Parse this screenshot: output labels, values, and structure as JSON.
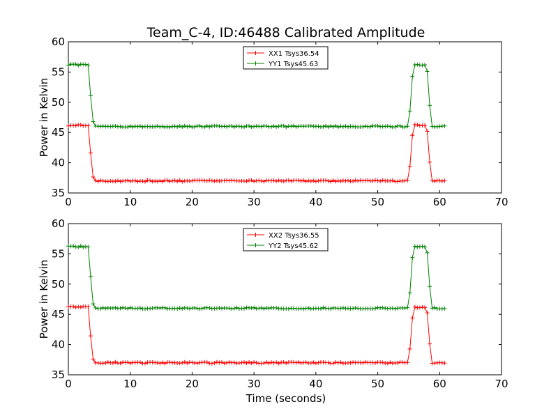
{
  "figure": {
    "title": "Team_C-4, ID:46488 Calibrated Amplitude",
    "xlabel": "Time (seconds)"
  },
  "chart_data": [
    {
      "type": "line",
      "ylabel": "Power in Kelvin",
      "xlabel": "",
      "xlim": [
        0,
        70
      ],
      "ylim": [
        35,
        60
      ],
      "xticks": [
        0,
        10,
        20,
        30,
        40,
        50,
        60,
        70
      ],
      "yticks": [
        35,
        40,
        45,
        50,
        55,
        60
      ],
      "grid": false,
      "legend_position": "top-center",
      "series": [
        {
          "name": "XX1 Tsys36.54",
          "color": "#ff0000",
          "marker": "+",
          "points": [
            [
              0,
              46.2
            ],
            [
              3.2,
              46.2
            ],
            [
              3.4,
              45.5
            ],
            [
              3.7,
              39.5
            ],
            [
              4.1,
              37.0
            ],
            [
              54.8,
              37.0
            ],
            [
              55.2,
              39.3
            ],
            [
              55.6,
              44.5
            ],
            [
              55.9,
              46.2
            ],
            [
              57.9,
              46.2
            ],
            [
              58.2,
              43.3
            ],
            [
              58.6,
              37.0
            ],
            [
              61,
              37.0
            ]
          ]
        },
        {
          "name": "YY1 Tsys45.63",
          "color": "#008000",
          "marker": "+",
          "points": [
            [
              0,
              56.2
            ],
            [
              3.2,
              56.2
            ],
            [
              3.4,
              55.6
            ],
            [
              3.7,
              49.0
            ],
            [
              4.1,
              46.0
            ],
            [
              54.8,
              46.0
            ],
            [
              55.2,
              48.5
            ],
            [
              55.6,
              54.3
            ],
            [
              55.9,
              56.2
            ],
            [
              57.9,
              56.2
            ],
            [
              58.2,
              53.0
            ],
            [
              58.6,
              46.0
            ],
            [
              61,
              46.0
            ]
          ]
        }
      ]
    },
    {
      "type": "line",
      "ylabel": "Power in Kelvin",
      "xlabel": "Time (seconds)",
      "xlim": [
        0,
        70
      ],
      "ylim": [
        35,
        60
      ],
      "xticks": [
        0,
        10,
        20,
        30,
        40,
        50,
        60,
        70
      ],
      "yticks": [
        35,
        40,
        45,
        50,
        55,
        60
      ],
      "grid": false,
      "legend_position": "top-center",
      "series": [
        {
          "name": "XX2 Tsys36.55",
          "color": "#ff0000",
          "marker": "+",
          "points": [
            [
              0,
              46.2
            ],
            [
              3.2,
              46.2
            ],
            [
              3.4,
              45.5
            ],
            [
              3.7,
              39.5
            ],
            [
              4.1,
              37.0
            ],
            [
              54.8,
              37.0
            ],
            [
              55.2,
              39.3
            ],
            [
              55.6,
              44.5
            ],
            [
              55.9,
              46.2
            ],
            [
              57.9,
              46.2
            ],
            [
              58.2,
              43.3
            ],
            [
              58.6,
              37.0
            ],
            [
              61,
              37.0
            ]
          ]
        },
        {
          "name": "YY2 Tsys45.62",
          "color": "#008000",
          "marker": "+",
          "points": [
            [
              0,
              56.2
            ],
            [
              3.2,
              56.2
            ],
            [
              3.4,
              55.6
            ],
            [
              3.7,
              49.0
            ],
            [
              4.1,
              46.0
            ],
            [
              54.8,
              46.0
            ],
            [
              55.2,
              48.5
            ],
            [
              55.6,
              54.3
            ],
            [
              55.9,
              56.2
            ],
            [
              57.9,
              56.2
            ],
            [
              58.2,
              53.0
            ],
            [
              58.6,
              46.0
            ],
            [
              61,
              46.0
            ]
          ]
        }
      ]
    }
  ]
}
